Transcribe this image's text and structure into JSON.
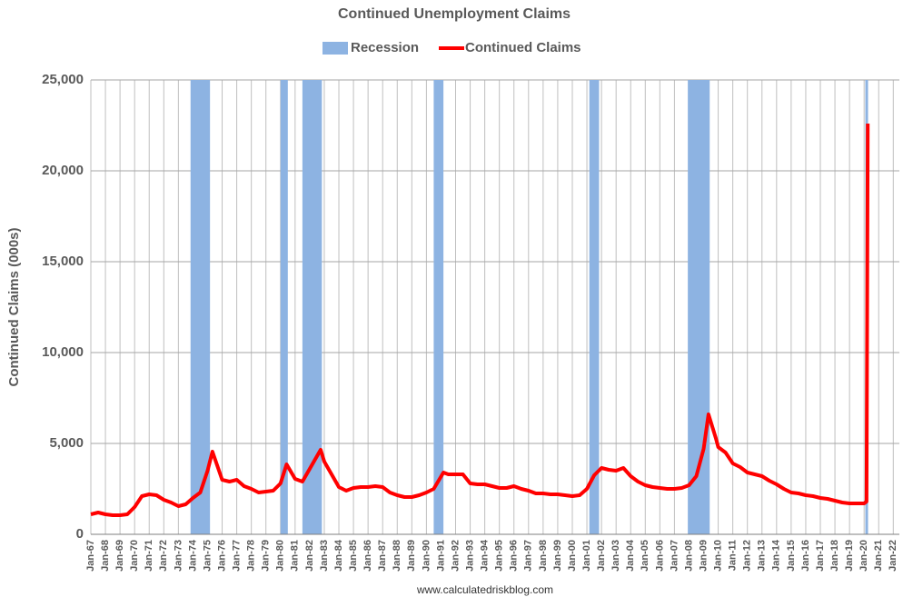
{
  "chart_data": {
    "type": "line",
    "title": "Continued Unemployment Claims",
    "y_label": "Continued Claims (000s)",
    "source": "www.calculatedriskblog.com",
    "x": [
      "Jan-67",
      "Jul-67",
      "Jan-68",
      "Jul-68",
      "Jan-69",
      "Jul-69",
      "Jan-70",
      "Jul-70",
      "Jan-71",
      "Jul-71",
      "Jan-72",
      "Jul-72",
      "Jan-73",
      "Jul-73",
      "Jan-74",
      "Jul-74",
      "Jan-75",
      "May-75",
      "Jan-76",
      "Jul-76",
      "Jan-77",
      "Jul-77",
      "Jan-78",
      "Jul-78",
      "Jan-79",
      "Jul-79",
      "Jan-80",
      "Jun-80",
      "Jan-81",
      "Jul-81",
      "Jan-82",
      "Oct-82",
      "Jan-83",
      "Jul-83",
      "Jan-84",
      "Jul-84",
      "Jan-85",
      "Jul-85",
      "Jan-86",
      "Jul-86",
      "Jan-87",
      "Jul-87",
      "Jan-88",
      "Jul-88",
      "Jan-89",
      "Jul-89",
      "Jan-90",
      "Jul-90",
      "Mar-91",
      "Jul-91",
      "Jan-92",
      "Jul-92",
      "Jan-93",
      "Jul-93",
      "Jan-94",
      "Jul-94",
      "Jan-95",
      "Jul-95",
      "Jan-96",
      "Jul-96",
      "Jan-97",
      "Jul-97",
      "Jan-98",
      "Jul-98",
      "Jan-99",
      "Jul-99",
      "Jan-00",
      "Jul-00",
      "Jan-01",
      "Jul-01",
      "Jan-02",
      "Jul-02",
      "Jan-03",
      "Jul-03",
      "Jan-04",
      "Jul-04",
      "Jan-05",
      "Jul-05",
      "Jan-06",
      "Jul-06",
      "Jan-07",
      "Jul-07",
      "Jan-08",
      "Jul-08",
      "Jan-09",
      "May-09",
      "Nov-09",
      "Jan-10",
      "Jul-10",
      "Jan-11",
      "Jul-11",
      "Jan-12",
      "Jul-12",
      "Jan-13",
      "Jul-13",
      "Jan-14",
      "Jul-14",
      "Jan-15",
      "Jul-15",
      "Jan-16",
      "Jul-16",
      "Jan-17",
      "Jul-17",
      "Jan-18",
      "Jul-18",
      "Jan-19",
      "Jul-19",
      "Jan-20",
      "Mar-20",
      "Apr-20"
    ],
    "series": [
      {
        "name": "Recession",
        "color": "#8db3e2",
        "periods": [
          [
            "Nov-73",
            "Mar-75"
          ],
          [
            "Jan-80",
            "Jul-80"
          ],
          [
            "Jul-81",
            "Nov-82"
          ],
          [
            "Jul-90",
            "Mar-91"
          ],
          [
            "Mar-01",
            "Nov-01"
          ],
          [
            "Dec-07",
            "Jun-09"
          ],
          [
            "Feb-20",
            "Apr-20"
          ]
        ]
      },
      {
        "name": "Continued Claims",
        "color": "#ff0000",
        "values": [
          1100,
          1200,
          1100,
          1050,
          1050,
          1100,
          1500,
          2100,
          2200,
          2150,
          1900,
          1750,
          1550,
          1650,
          2000,
          2300,
          3500,
          4550,
          3000,
          2900,
          3000,
          2650,
          2500,
          2300,
          2350,
          2400,
          2800,
          3850,
          3050,
          2900,
          3600,
          4650,
          4000,
          3300,
          2600,
          2400,
          2550,
          2600,
          2600,
          2650,
          2600,
          2300,
          2150,
          2050,
          2050,
          2150,
          2300,
          2500,
          3400,
          3300,
          3300,
          3300,
          2800,
          2750,
          2750,
          2650,
          2550,
          2550,
          2650,
          2500,
          2400,
          2250,
          2250,
          2200,
          2200,
          2150,
          2100,
          2150,
          2500,
          3250,
          3650,
          3550,
          3500,
          3650,
          3200,
          2900,
          2700,
          2600,
          2550,
          2500,
          2500,
          2550,
          2700,
          3200,
          4700,
          6600,
          5300,
          4800,
          4500,
          3900,
          3700,
          3400,
          3300,
          3200,
          2950,
          2750,
          2500,
          2300,
          2250,
          2150,
          2100,
          2000,
          1950,
          1850,
          1750,
          1700,
          1700,
          1700,
          1800,
          22600
        ]
      }
    ],
    "xlim": [
      "Jan-67",
      "Jun-22"
    ],
    "xticks": [
      "Jan-67",
      "Jan-68",
      "Jan-69",
      "Jan-70",
      "Jan-71",
      "Jan-72",
      "Jan-73",
      "Jan-74",
      "Jan-75",
      "Jan-76",
      "Jan-77",
      "Jan-78",
      "Jan-79",
      "Jan-80",
      "Jan-81",
      "Jan-82",
      "Jan-83",
      "Jan-84",
      "Jan-85",
      "Jan-86",
      "Jan-87",
      "Jan-88",
      "Jan-89",
      "Jan-90",
      "Jan-91",
      "Jan-92",
      "Jan-93",
      "Jan-94",
      "Jan-95",
      "Jan-96",
      "Jan-97",
      "Jan-98",
      "Jan-99",
      "Jan-00",
      "Jan-01",
      "Jan-02",
      "Jan-03",
      "Jan-04",
      "Jan-05",
      "Jan-06",
      "Jan-07",
      "Jan-08",
      "Jan-09",
      "Jan-10",
      "Jan-11",
      "Jan-12",
      "Jan-13",
      "Jan-14",
      "Jan-15",
      "Jan-16",
      "Jan-17",
      "Jan-18",
      "Jan-19",
      "Jan-20",
      "Jan-21",
      "Jan-22"
    ],
    "ylim": [
      0,
      25000
    ],
    "yticks": [
      0,
      {
        "value": 5000,
        "label": "5,000"
      },
      {
        "value": 10000,
        "label": "10,000"
      },
      {
        "value": 15000,
        "label": "15,000"
      },
      {
        "value": 20000,
        "label": "20,000"
      },
      {
        "value": 25000,
        "label": "25,000"
      }
    ],
    "grid": true
  }
}
